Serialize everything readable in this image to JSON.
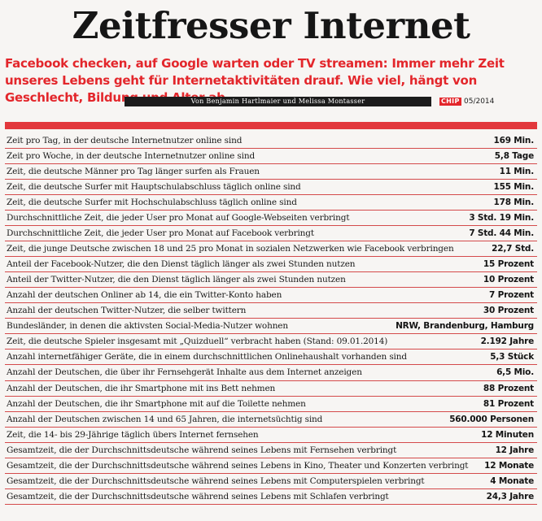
{
  "header": {
    "title": "Zeitfresser Internet",
    "subtitle": "Facebook checken, auf Google warten oder TV streamen: Immer mehr Zeit unseres Lebens geht für Internetaktivitäten drauf. Wie viel, hängt von Geschlecht, Bildung und Alter ab",
    "byline": "Von Benjamin Hartlmaier und Melissa Montasser",
    "logo": "CHIP",
    "issue": "05/2014"
  },
  "colors": {
    "accent": "#e3262b",
    "rule": "#d44a4b",
    "bar": "#1c1c1c",
    "background": "#f7f5f3"
  },
  "rows": [
    {
      "label": "Zeit pro Tag, in der deutsche Internetnutzer online sind",
      "value": "169 Min."
    },
    {
      "label": "Zeit pro Woche, in der deutsche Internetnutzer online sind",
      "value": "5,8 Tage"
    },
    {
      "label": "Zeit, die deutsche Männer pro Tag länger surfen als Frauen",
      "value": "11 Min."
    },
    {
      "label": "Zeit, die deutsche Surfer mit Hauptschulabschluss täglich online sind",
      "value": "155 Min."
    },
    {
      "label": "Zeit, die deutsche Surfer mit Hochschulabschluss täglich online sind",
      "value": "178 Min."
    },
    {
      "label": "Durchschnittliche Zeit, die jeder User pro Monat auf Google-Webseiten verbringt",
      "value": "3 Std. 19 Min."
    },
    {
      "label": "Durchschnittliche Zeit, die jeder User pro Monat auf Facebook verbringt",
      "value": "7 Std. 44 Min."
    },
    {
      "label": "Zeit, die junge Deutsche zwischen 18 und 25 pro Monat in sozialen Netzwerken wie Facebook verbringen",
      "value": "22,7 Std."
    },
    {
      "label": "Anteil der Facebook-Nutzer, die den Dienst täglich länger als zwei Stunden nutzen",
      "value": "15 Prozent"
    },
    {
      "label": "Anteil der Twitter-Nutzer, die den Dienst täglich länger als zwei Stunden nutzen",
      "value": "10 Prozent"
    },
    {
      "label": "Anzahl der deutschen Onliner ab 14, die ein Twitter-Konto haben",
      "value": "7 Prozent"
    },
    {
      "label": "Anzahl der deutschen Twitter-Nutzer, die selber twittern",
      "value": "30 Prozent"
    },
    {
      "label": "Bundesländer, in denen die aktivsten Social-Media-Nutzer wohnen",
      "value": "NRW, Brandenburg, Hamburg"
    },
    {
      "label": "Zeit, die deutsche Spieler insgesamt mit „Quizduell“ verbracht haben (Stand: 09.01.2014)",
      "value": "2.192 Jahre"
    },
    {
      "label": "Anzahl internetfähiger Geräte, die in einem durchschnittlichen Onlinehaushalt vorhanden sind",
      "value": "5,3 Stück"
    },
    {
      "label": "Anzahl der Deutschen, die über ihr Fernsehgerät Inhalte aus dem Internet anzeigen",
      "value": "6,5 Mio."
    },
    {
      "label": "Anzahl der Deutschen, die ihr Smartphone mit ins Bett nehmen",
      "value": "88 Prozent"
    },
    {
      "label": "Anzahl der Deutschen, die ihr Smartphone mit auf die Toilette nehmen",
      "value": "81 Prozent"
    },
    {
      "label": "Anzahl der Deutschen zwischen 14 und 65 Jahren, die internetsüchtig sind",
      "value": "560.000 Personen"
    },
    {
      "label": "Zeit, die 14- bis 29-Jährige täglich übers Internet fernsehen",
      "value": "12 Minuten"
    },
    {
      "label": "Gesamtzeit, die der Durchschnittsdeutsche während seines Lebens mit Fernsehen verbringt",
      "value": "12 Jahre"
    },
    {
      "label": "Gesamtzeit, die der Durchschnittsdeutsche während seines Lebens in Kino, Theater und Konzerten verbringt",
      "value": "12 Monate"
    },
    {
      "label": "Gesamtzeit, die der Durchschnittsdeutsche während seines Lebens mit Computerspielen verbringt",
      "value": "4 Monate"
    },
    {
      "label": "Gesamtzeit, die der Durchschnittsdeutsche während seines Lebens mit Schlafen verbringt",
      "value": "24,3 Jahre"
    }
  ]
}
